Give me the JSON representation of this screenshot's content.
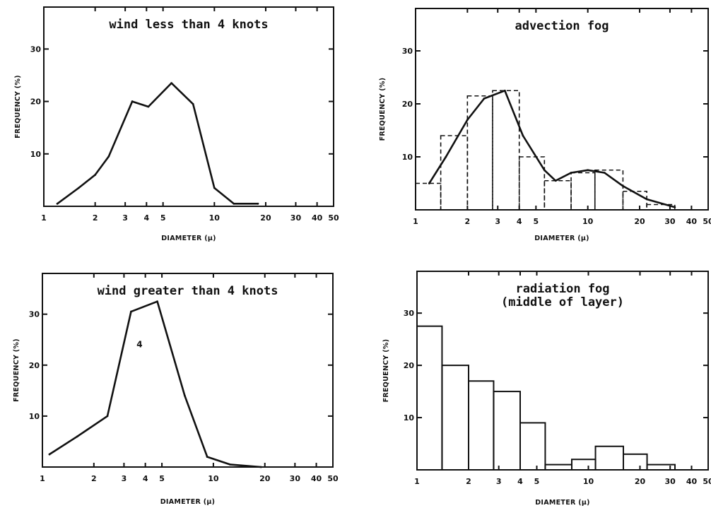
{
  "chart_data": [
    {
      "type": "line",
      "title": "wind less than 4 knots",
      "xlabel": "DIAMETER (µ)",
      "ylabel": "FREQUENCY (%)",
      "x_scale": "log",
      "xlim": [
        1,
        50
      ],
      "ylim": [
        0,
        38
      ],
      "x_ticks": [
        1,
        2,
        3,
        4,
        5,
        10,
        20,
        30,
        40,
        50
      ],
      "x_tick_labels": [
        "1",
        "2",
        "3",
        "4",
        "5",
        "10",
        "20",
        "30",
        "40",
        "50"
      ],
      "y_ticks": [
        10,
        20,
        30
      ],
      "y_tick_labels": [
        "10",
        "20",
        "30"
      ],
      "grid": false,
      "series": [
        {
          "x": [
            1.2,
            1.6,
            2.0,
            2.4,
            3.3,
            4.1,
            5.6,
            7.5,
            10.0,
            13.0,
            18.0
          ],
          "y": [
            0.5,
            3.5,
            6,
            9.5,
            20,
            19,
            23.5,
            19.5,
            3.5,
            0.5,
            0.5
          ]
        }
      ]
    },
    {
      "type": "bar",
      "title": "advection fog",
      "xlabel": "DIAMETER (µ)",
      "ylabel": "FREQUENCY (%)",
      "x_scale": "log",
      "xlim": [
        1,
        50
      ],
      "ylim": [
        0,
        38
      ],
      "x_ticks": [
        1,
        2,
        3,
        4,
        5,
        10,
        20,
        30,
        40,
        50
      ],
      "x_tick_labels": [
        "1",
        "2",
        "3",
        "4",
        "5",
        "10",
        "20",
        "30",
        "40",
        "50"
      ],
      "y_ticks": [
        10,
        20,
        30
      ],
      "y_tick_labels": [
        "10",
        "20",
        "30"
      ],
      "grid": false,
      "bars": [
        {
          "x0": 1.0,
          "x1": 1.4,
          "value": 5
        },
        {
          "x0": 1.4,
          "x1": 2.0,
          "value": 14
        },
        {
          "x0": 2.0,
          "x1": 2.8,
          "value": 21.5
        },
        {
          "x0": 2.8,
          "x1": 4.0,
          "value": 22.5
        },
        {
          "x0": 4.0,
          "x1": 5.6,
          "value": 10
        },
        {
          "x0": 5.6,
          "x1": 8.0,
          "value": 5.5
        },
        {
          "x0": 8.0,
          "x1": 11.0,
          "value": 7
        },
        {
          "x0": 11.0,
          "x1": 16.0,
          "value": 7.5
        },
        {
          "x0": 16.0,
          "x1": 22.0,
          "value": 3.5
        },
        {
          "x0": 22.0,
          "x1": 32.0,
          "value": 1
        }
      ],
      "series": [
        {
          "x": [
            1.2,
            1.5,
            2.0,
            2.5,
            3.3,
            4.2,
            5.6,
            6.5,
            8.0,
            10.0,
            12.5,
            16.0,
            22.0,
            32.0
          ],
          "y": [
            5,
            10,
            17,
            21,
            22.5,
            14,
            7.5,
            5.5,
            7,
            7.5,
            7,
            4.5,
            2,
            0.5
          ]
        }
      ]
    },
    {
      "type": "line",
      "title": "wind greater than 4 knots",
      "xlabel": "DIAMETER (µ)",
      "ylabel": "FREQUENCY (%)",
      "x_scale": "log",
      "xlim": [
        1,
        50
      ],
      "ylim": [
        0,
        38
      ],
      "x_ticks": [
        1,
        2,
        3,
        4,
        5,
        10,
        20,
        30,
        40,
        50
      ],
      "x_tick_labels": [
        "1",
        "2",
        "3",
        "4",
        "5",
        "10",
        "20",
        "30",
        "40",
        "50"
      ],
      "y_ticks": [
        10,
        20,
        30
      ],
      "y_tick_labels": [
        "10",
        "20",
        "30"
      ],
      "grid": false,
      "annotations": [
        {
          "text": "4",
          "x": 3.7,
          "y": 23.5
        }
      ],
      "series": [
        {
          "x": [
            1.1,
            1.6,
            2.4,
            3.3,
            4.7,
            6.8,
            9.2,
            12.5,
            19.0
          ],
          "y": [
            2.5,
            6,
            10,
            30.5,
            32.5,
            14,
            2,
            0.5,
            0
          ]
        }
      ]
    },
    {
      "type": "bar",
      "title": "radiation fog\n(middle of layer)",
      "xlabel": "DIAMETER (µ)",
      "ylabel": "FREQUENCY (%)",
      "x_scale": "log",
      "xlim": [
        1,
        50
      ],
      "ylim": [
        0,
        38
      ],
      "x_ticks": [
        1,
        2,
        3,
        4,
        5,
        10,
        20,
        30,
        40,
        50
      ],
      "x_tick_labels": [
        "1",
        "2",
        "3",
        "4",
        "5",
        "10",
        "20",
        "30",
        "40",
        "50"
      ],
      "y_ticks": [
        10,
        20,
        30
      ],
      "y_tick_labels": [
        "10",
        "20",
        "30"
      ],
      "grid": false,
      "bars": [
        {
          "x0": 1.0,
          "x1": 1.4,
          "value": 27.5
        },
        {
          "x0": 1.4,
          "x1": 2.0,
          "value": 20
        },
        {
          "x0": 2.0,
          "x1": 2.8,
          "value": 17
        },
        {
          "x0": 2.8,
          "x1": 4.0,
          "value": 15
        },
        {
          "x0": 4.0,
          "x1": 5.6,
          "value": 9
        },
        {
          "x0": 5.6,
          "x1": 8.0,
          "value": 1
        },
        {
          "x0": 8.0,
          "x1": 11.0,
          "value": 2
        },
        {
          "x0": 11.0,
          "x1": 16.0,
          "value": 4.5
        },
        {
          "x0": 16.0,
          "x1": 22.0,
          "value": 3
        },
        {
          "x0": 22.0,
          "x1": 32.0,
          "value": 1
        }
      ]
    }
  ]
}
